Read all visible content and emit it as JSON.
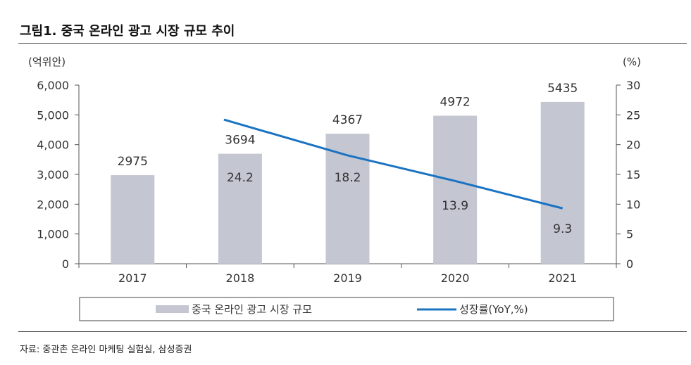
{
  "header": {
    "title": "그림1.  중국 온라인 광고 시장 규모 추이"
  },
  "footer": {
    "source": "자료: 중관촌 온라인 마케팅 실험실, 삼성증권"
  },
  "chart_data": {
    "type": "bar",
    "title": "그림1.  중국 온라인 광고 시장 규모 추이",
    "categories": [
      "2017",
      "2018",
      "2019",
      "2020",
      "2021"
    ],
    "left_unit": "(억위안)",
    "right_unit": "(%)",
    "ylim": [
      0,
      6000
    ],
    "y2lim": [
      0,
      30
    ],
    "left_ticks": [
      "0",
      "1,000",
      "2,000",
      "3,000",
      "4,000",
      "5,000",
      "6,000"
    ],
    "right_ticks": [
      "0",
      "5",
      "10",
      "15",
      "20",
      "25",
      "30"
    ],
    "series": [
      {
        "name": "중국 온라인 광고 시장 규모",
        "type": "bar",
        "axis": "left",
        "values": [
          2975,
          3694,
          4367,
          4972,
          5435
        ],
        "labels": [
          "2975",
          "3694",
          "4367",
          "4972",
          "5435"
        ]
      },
      {
        "name": "성장률(YoY,%)",
        "type": "line",
        "axis": "right",
        "values": [
          null,
          24.2,
          18.2,
          13.9,
          9.3
        ],
        "labels": [
          "",
          "24.2",
          "18.2",
          "13.9",
          "9.3"
        ]
      }
    ],
    "colors": {
      "bar": "#c4c6d2",
      "line": "#1a73c2",
      "axis": "#555555",
      "text": "#333333"
    },
    "legend": {
      "position": "bottom",
      "boxed": true
    }
  }
}
